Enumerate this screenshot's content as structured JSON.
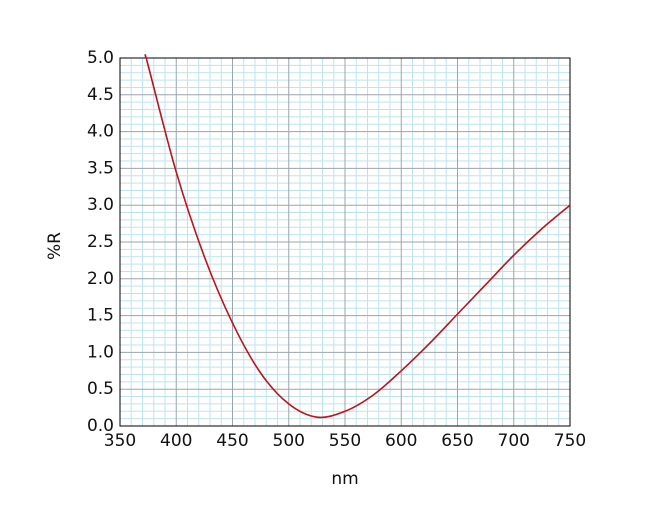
{
  "chart_data": {
    "type": "line",
    "xlabel": "nm",
    "ylabel": "%R",
    "x": [
      373,
      375,
      400,
      425,
      450,
      475,
      500,
      525,
      550,
      575,
      600,
      625,
      650,
      675,
      700,
      725,
      750
    ],
    "series": [
      {
        "name": "%R",
        "color": "#b8141b",
        "values": [
          5.0,
          4.9,
          3.45,
          2.3,
          1.4,
          0.72,
          0.3,
          0.12,
          0.2,
          0.42,
          0.75,
          1.12,
          1.52,
          1.92,
          2.32,
          2.68,
          3.0
        ]
      }
    ],
    "xlim": [
      350,
      750
    ],
    "ylim": [
      0,
      5
    ],
    "xticks": [
      350,
      400,
      450,
      500,
      550,
      600,
      650,
      700,
      750
    ],
    "yticks": [
      {
        "value": 0,
        "label": "0.0"
      },
      0.5,
      {
        "value": 1,
        "label": "1.0"
      },
      1.5,
      {
        "value": 2,
        "label": "2.0"
      },
      2.5,
      {
        "value": 3,
        "label": "3.0"
      },
      3.5,
      {
        "value": 4,
        "label": "4.0"
      },
      4.5,
      {
        "value": 5,
        "label": "5.0"
      }
    ],
    "grid": true,
    "minor_grid": true
  }
}
